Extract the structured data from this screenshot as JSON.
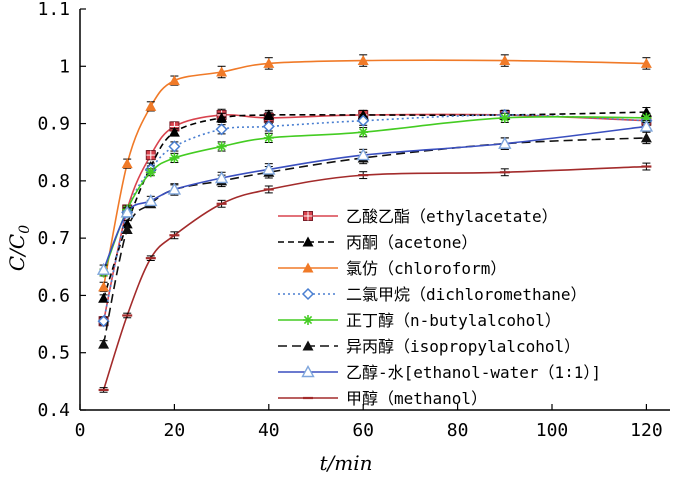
{
  "chart_data": {
    "type": "line",
    "title": "",
    "xlabel": "t/min",
    "ylabel": "C/C0",
    "ylabel_main": "C/C",
    "ylabel_sub": "0",
    "xlim": [
      0,
      125
    ],
    "ylim": [
      0.4,
      1.1
    ],
    "xticks": [
      0,
      20,
      40,
      60,
      80,
      100,
      120
    ],
    "yticks": [
      0.4,
      0.5,
      0.6,
      0.7,
      0.8,
      0.9,
      1.0,
      1.1
    ],
    "xtick_labels": [
      "0",
      "20",
      "40",
      "60",
      "80",
      "100",
      "120"
    ],
    "ytick_labels": [
      "0.4",
      "0.5",
      "0.6",
      "0.7",
      "0.8",
      "0.9",
      "1",
      "1.1"
    ],
    "grid": false,
    "legend_position": "center-right",
    "series": [
      {
        "name": "乙酸乙酯（ethylacetate）",
        "color": "#d9434e",
        "line_style": "solid",
        "marker": "square",
        "x": [
          5,
          10,
          15,
          20,
          30,
          40,
          60,
          90,
          120
        ],
        "y": [
          0.555,
          0.75,
          0.845,
          0.895,
          0.915,
          0.91,
          0.915,
          0.915,
          0.905
        ],
        "err": [
          0.008,
          0.008,
          0.008,
          0.008,
          0.01,
          0.01,
          0.008,
          0.008,
          0.008
        ]
      },
      {
        "name": "丙酮（acetone）",
        "color": "#000000",
        "line_style": "dashed",
        "marker": "triangle",
        "x": [
          5,
          10,
          15,
          20,
          30,
          40,
          60,
          90,
          120
        ],
        "y": [
          0.595,
          0.725,
          0.825,
          0.885,
          0.91,
          0.915,
          0.915,
          0.915,
          0.92
        ],
        "err": [
          0.006,
          0.006,
          0.006,
          0.006,
          0.008,
          0.008,
          0.008,
          0.008,
          0.008
        ]
      },
      {
        "name": "氯仿（chloroform）",
        "color": "#f07a28",
        "line_style": "solid",
        "marker": "triangle",
        "x": [
          5,
          10,
          15,
          20,
          30,
          40,
          60,
          90,
          120
        ],
        "y": [
          0.615,
          0.83,
          0.93,
          0.975,
          0.99,
          1.005,
          1.01,
          1.01,
          1.005
        ],
        "err": [
          0.008,
          0.008,
          0.008,
          0.008,
          0.01,
          0.01,
          0.01,
          0.01,
          0.01
        ]
      },
      {
        "name": "二氯甲烷（dichloromethane）",
        "color": "#4a7fd1",
        "line_style": "dotted",
        "marker": "diamond",
        "x": [
          5,
          10,
          15,
          20,
          30,
          40,
          60,
          90,
          120
        ],
        "y": [
          0.555,
          0.745,
          0.82,
          0.86,
          0.89,
          0.895,
          0.905,
          0.915,
          0.905
        ],
        "err": [
          0.006,
          0.006,
          0.006,
          0.008,
          0.008,
          0.008,
          0.008,
          0.008,
          0.008
        ]
      },
      {
        "name": "正丁醇（n-butylalcohol）",
        "color": "#44cc22",
        "line_style": "solid",
        "marker": "asterisk",
        "x": [
          5,
          10,
          15,
          20,
          30,
          40,
          60,
          90,
          120
        ],
        "y": [
          0.64,
          0.75,
          0.815,
          0.84,
          0.86,
          0.875,
          0.885,
          0.91,
          0.91
        ],
        "err": [
          0.006,
          0.006,
          0.006,
          0.008,
          0.008,
          0.008,
          0.008,
          0.008,
          0.008
        ]
      },
      {
        "name": "异丙醇（isopropylalcohol）",
        "color": "#111111",
        "line_style": "longdash",
        "marker": "triangle",
        "x": [
          5,
          10,
          15,
          20,
          30,
          40,
          60,
          90,
          120
        ],
        "y": [
          0.515,
          0.715,
          0.76,
          0.785,
          0.8,
          0.815,
          0.84,
          0.865,
          0.875
        ],
        "err": [
          0.006,
          0.006,
          0.006,
          0.008,
          0.01,
          0.01,
          0.01,
          0.01,
          0.01
        ]
      },
      {
        "name": "乙醇-水[ethanol-water（1∶1）]",
        "color": "#3a4fbf",
        "line_style": "solid",
        "marker": "triangle-open",
        "x": [
          5,
          10,
          15,
          20,
          30,
          40,
          60,
          90,
          120
        ],
        "y": [
          0.645,
          0.745,
          0.765,
          0.785,
          0.805,
          0.82,
          0.845,
          0.865,
          0.895
        ],
        "err": [
          0.008,
          0.008,
          0.008,
          0.01,
          0.01,
          0.01,
          0.01,
          0.01,
          0.01
        ]
      },
      {
        "name": "甲醇（methanol）",
        "color": "#a32b2b",
        "line_style": "solid",
        "marker": "dash",
        "x": [
          5,
          10,
          15,
          20,
          30,
          40,
          60,
          90,
          120
        ],
        "y": [
          0.435,
          0.565,
          0.665,
          0.705,
          0.76,
          0.785,
          0.81,
          0.815,
          0.825
        ],
        "err": [
          0.004,
          0.004,
          0.004,
          0.006,
          0.006,
          0.006,
          0.006,
          0.006,
          0.006
        ]
      }
    ]
  }
}
